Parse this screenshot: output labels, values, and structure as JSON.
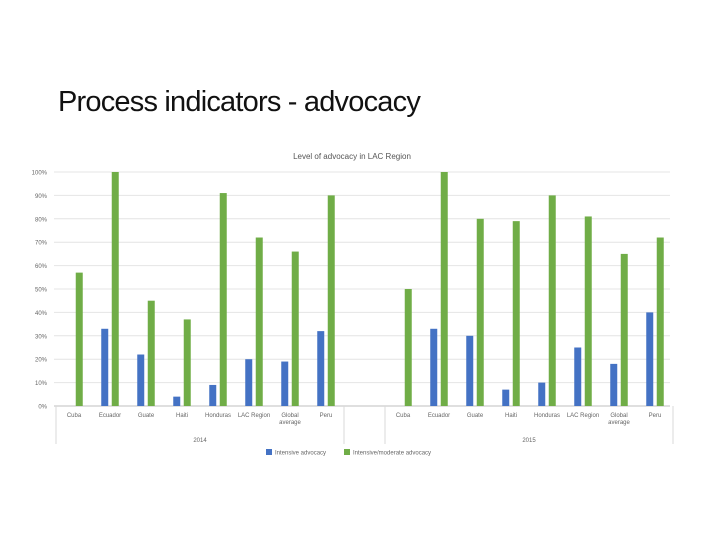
{
  "slide": {
    "title": "Process indicators - advocacy"
  },
  "chart_data": {
    "type": "bar",
    "title": "Level of advocacy in LAC Region",
    "xlabel": "",
    "ylabel": "",
    "ylim": [
      0,
      100
    ],
    "yticks": [
      "0%",
      "10%",
      "20%",
      "30%",
      "40%",
      "50%",
      "60%",
      "70%",
      "80%",
      "90%",
      "100%"
    ],
    "grid": true,
    "legend_position": "bottom",
    "colors": {
      "intensive": "#4472c4",
      "intensive_moderate": "#70ad47"
    },
    "groups": [
      {
        "label": "2014",
        "categories": [
          "Cuba",
          "Ecuador",
          "Guate",
          "Haiti",
          "Honduras",
          "LAC Region",
          "Global average",
          "Peru"
        ]
      },
      {
        "label": "2015",
        "categories": [
          "Cuba",
          "Ecuador",
          "Guate",
          "Haiti",
          "Honduras",
          "LAC Region",
          "Global average",
          "Peru"
        ]
      }
    ],
    "series": [
      {
        "name": "Intensive advocacy",
        "values": [
          0,
          33,
          22,
          4,
          9,
          20,
          19,
          32,
          0,
          33,
          30,
          7,
          10,
          25,
          18,
          40
        ]
      },
      {
        "name": "Intensive/moderate advocacy",
        "values": [
          57,
          100,
          45,
          37,
          91,
          72,
          66,
          90,
          50,
          100,
          80,
          79,
          90,
          81,
          65,
          72
        ]
      }
    ]
  }
}
